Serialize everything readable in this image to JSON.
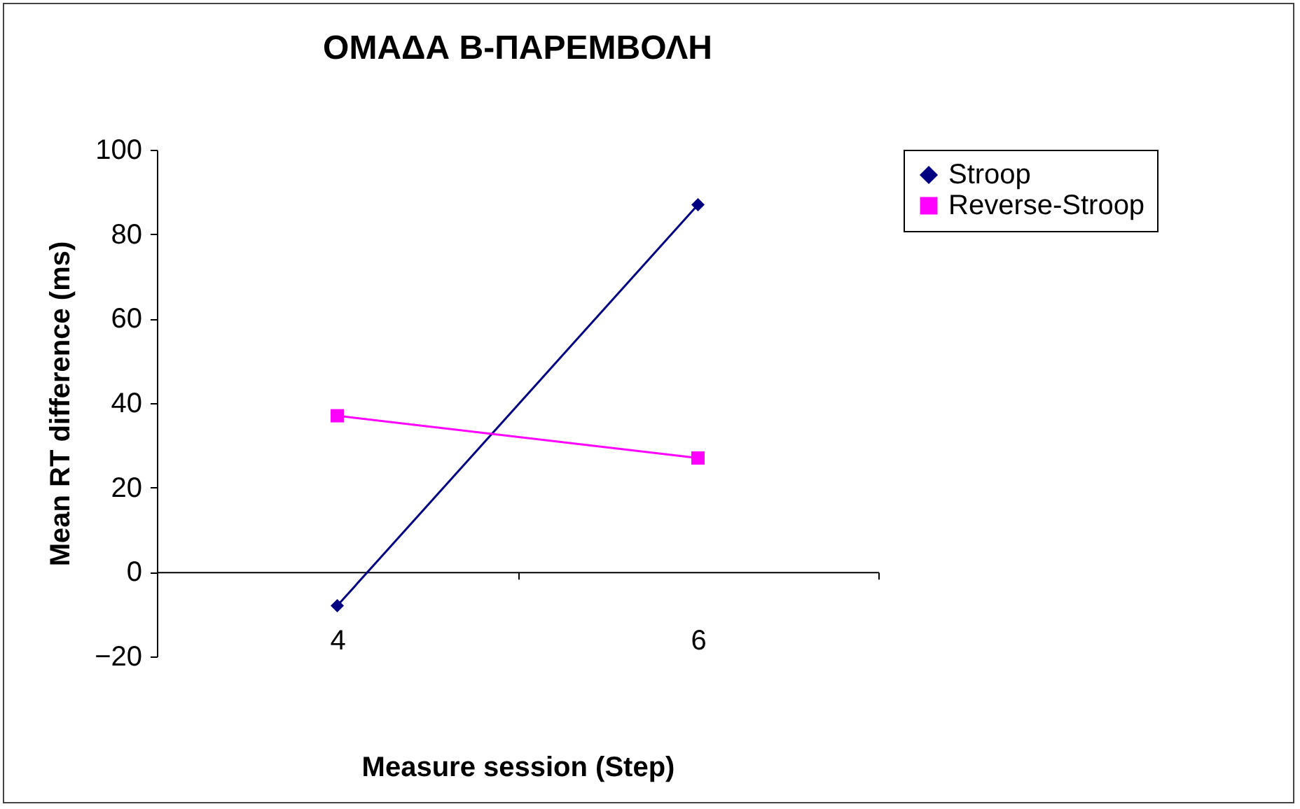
{
  "chart_data": {
    "type": "line",
    "title": "ΟΜΑΔΑ Β-ΠΑΡΕΜΒΟΛΗ",
    "xlabel": "Measure session (Step)",
    "ylabel": "Mean RT difference (ms)",
    "categories": [
      "4",
      "6"
    ],
    "series": [
      {
        "name": "Stroop",
        "color": "#000080",
        "marker": "diamond",
        "values": [
          -8,
          87
        ]
      },
      {
        "name": "Reverse-Stroop",
        "color": "#ff00ff",
        "marker": "square",
        "values": [
          37,
          27
        ]
      }
    ],
    "ylim": [
      -20,
      100
    ],
    "yticks": [
      -20,
      0,
      20,
      40,
      60,
      80,
      100
    ],
    "grid": false,
    "legend": "right"
  }
}
